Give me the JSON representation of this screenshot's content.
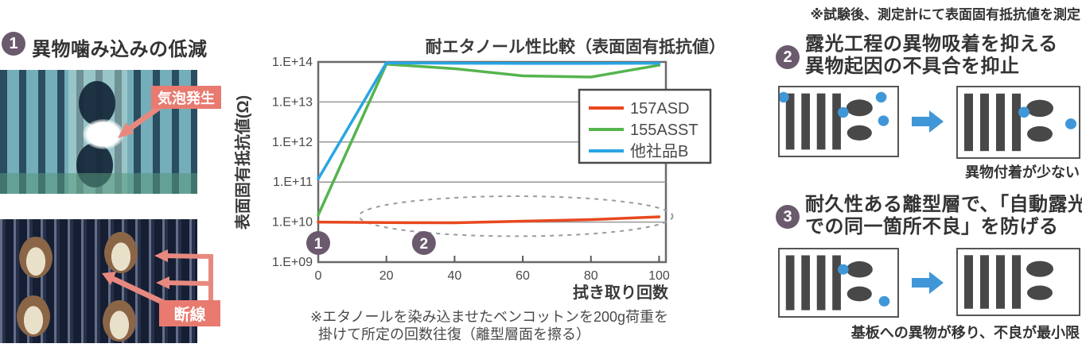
{
  "colors": {
    "accent_purple": "#6b5a6e",
    "label_salmon": "#e87a70",
    "arrow_salmon": "#e8897f",
    "arrow_blue": "#3f97d8",
    "line_red": "#e8481f",
    "line_green": "#56b44e",
    "line_blue": "#29a5e3"
  },
  "top_note": "※試験後、測定計にて表面固有抵抗値を測定",
  "section1": {
    "number": "1",
    "title": "異物噛み込みの低減",
    "photo1_annotation": "気泡発生",
    "photo2_annotation": "断線"
  },
  "chart_notes": {
    "line1": "※エタノールを染み込ませたベンコットンを200g荷重を",
    "line2": "掛けて所定の回数往復（離型層面を擦る）"
  },
  "chart_data": {
    "type": "line",
    "title": "耐エタノール性比較（表面固有抵抗値）",
    "xlabel": "拭き取り回数",
    "ylabel": "表面固有抵抗値(Ω)",
    "y_scale": "log",
    "ylim": [
      1000000000.0,
      100000000000000.0
    ],
    "xlim": [
      0,
      102
    ],
    "x": [
      0,
      20,
      40,
      60,
      80,
      100
    ],
    "x_ticks": [
      0,
      20,
      40,
      60,
      80,
      100
    ],
    "y_tick_labels": [
      "1.E+14",
      "1.E+13",
      "1.E+12",
      "1.E+11",
      "1.E+10",
      "1.E+09"
    ],
    "grid": "horizontal-only",
    "legend_position": "inside-right",
    "series": [
      {
        "name": "157ASD",
        "color": "#e8481f",
        "values": [
          10000000000.0,
          9700000000.0,
          9600000000.0,
          10500000000.0,
          11500000000.0,
          13500000000.0
        ]
      },
      {
        "name": "155ASST",
        "color": "#56b44e",
        "values": [
          15000000000.0,
          88000000000000.0,
          68000000000000.0,
          45000000000000.0,
          42000000000000.0,
          83000000000000.0
        ]
      },
      {
        "name": "他社品B",
        "color": "#29a5e3",
        "values": [
          120000000000.0,
          95000000000000.0,
          93000000000000.0,
          92000000000000.0,
          92000000000000.0,
          93000000000000.0
        ]
      }
    ],
    "annotations": {
      "circled_numbers": [
        {
          "label": "1",
          "x": 0,
          "y": 3000000000.0
        },
        {
          "label": "2",
          "x": 31,
          "y": 3000000000.0
        }
      ],
      "dashed_ellipse": {
        "x_center": 58,
        "x_radius": 46,
        "y_center": 14000000000.0,
        "y_decades_radius": 0.5
      }
    }
  },
  "section2": {
    "number": "2",
    "title_line1": "露光工程の異物吸着を抑える",
    "title_line2": "異物起因の不具合を抑止",
    "caption": "異物付着が少ない"
  },
  "section3": {
    "number": "3",
    "title_line1": "耐久性ある離型層で、「自動露光",
    "title_line2": "での同一箇所不良」を防げる",
    "caption": "基板への異物が移り、不良が最小限"
  }
}
